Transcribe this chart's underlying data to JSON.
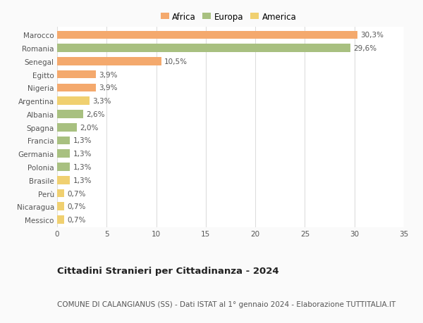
{
  "countries": [
    "Marocco",
    "Romania",
    "Senegal",
    "Egitto",
    "Nigeria",
    "Argentina",
    "Albania",
    "Spagna",
    "Francia",
    "Germania",
    "Polonia",
    "Brasile",
    "Perù",
    "Nicaragua",
    "Messico"
  ],
  "values": [
    30.3,
    29.6,
    10.5,
    3.9,
    3.9,
    3.3,
    2.6,
    2.0,
    1.3,
    1.3,
    1.3,
    1.3,
    0.7,
    0.7,
    0.7
  ],
  "labels": [
    "30,3%",
    "29,6%",
    "10,5%",
    "3,9%",
    "3,9%",
    "3,3%",
    "2,6%",
    "2,0%",
    "1,3%",
    "1,3%",
    "1,3%",
    "1,3%",
    "0,7%",
    "0,7%",
    "0,7%"
  ],
  "continents": [
    "Africa",
    "Europa",
    "Africa",
    "Africa",
    "Africa",
    "America",
    "Europa",
    "Europa",
    "Europa",
    "Europa",
    "Europa",
    "America",
    "America",
    "America",
    "America"
  ],
  "colors": {
    "Africa": "#F4A96D",
    "Europa": "#A8C080",
    "America": "#F0D070"
  },
  "legend_order": [
    "Africa",
    "Europa",
    "America"
  ],
  "xlim": [
    0,
    35
  ],
  "xticks": [
    0,
    5,
    10,
    15,
    20,
    25,
    30,
    35
  ],
  "title": "Cittadini Stranieri per Cittadinanza - 2024",
  "subtitle": "COMUNE DI CALANGIANUS (SS) - Dati ISTAT al 1° gennaio 2024 - Elaborazione TUTTITALIA.IT",
  "bg_color": "#FAFAFA",
  "plot_bg_color": "#FFFFFF",
  "grid_color": "#DDDDDD",
  "bar_height": 0.62,
  "label_fontsize": 7.5,
  "tick_fontsize": 7.5,
  "title_fontsize": 9.5,
  "subtitle_fontsize": 7.5
}
